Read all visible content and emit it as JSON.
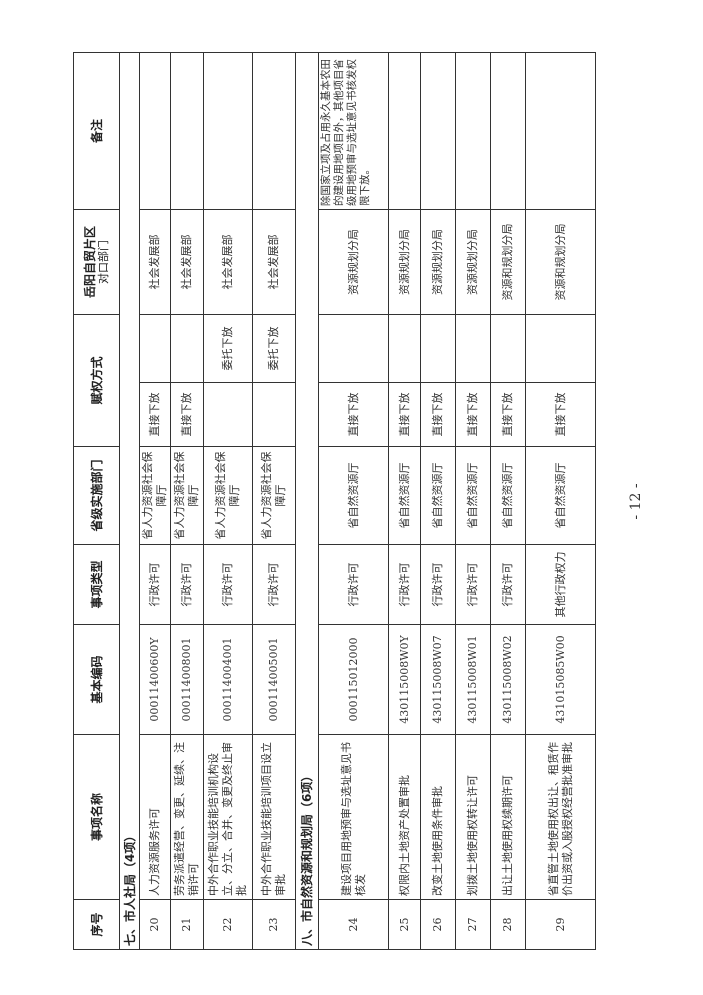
{
  "table": {
    "headers": {
      "seq": "序号",
      "name": "事项名称",
      "code": "基本编码",
      "type": "事项类型",
      "provincial_dept": "省级实施部门",
      "grant_method": "赋权方式",
      "counterpart_line1": "岳阳自贸片区",
      "counterpart_line2": "对口部门",
      "remark": "备注"
    },
    "sections": [
      {
        "title": "七、市人社局（4项）",
        "rows": [
          {
            "seq": "20",
            "name": "人力资源服务许可",
            "code": "00011400600Y",
            "type": "行政许可",
            "dept": "省人力资源社会保障厅",
            "direct": "直接下放",
            "entrust": "",
            "counterpart": "社会发展部",
            "remark": ""
          },
          {
            "seq": "21",
            "name": "劳务派遣经营、变更、延续、注销许可",
            "code": "000114008001",
            "type": "行政许可",
            "dept": "省人力资源社会保障厅",
            "direct": "直接下放",
            "entrust": "",
            "counterpart": "社会发展部",
            "remark": ""
          },
          {
            "seq": "22",
            "name": "中外合作职业技能培训机构设立、分立、合并、变更及终止审批",
            "code": "000114004001",
            "type": "行政许可",
            "dept": "省人力资源社会保障厅",
            "direct": "",
            "entrust": "委托下放",
            "counterpart": "社会发展部",
            "remark": ""
          },
          {
            "seq": "23",
            "name": "中外合作职业技能培训项目设立审批",
            "code": "000114005001",
            "type": "行政许可",
            "dept": "省人力资源社会保障厅",
            "direct": "",
            "entrust": "委托下放",
            "counterpart": "社会发展部",
            "remark": ""
          }
        ]
      },
      {
        "title": "八、市自然资源和规划局（6项）",
        "rows": [
          {
            "seq": "24",
            "name": "建设项目用地预审与选址意见书核发",
            "code": "000115012000",
            "type": "行政许可",
            "dept": "省自然资源厅",
            "direct": "直接下放",
            "entrust": "",
            "counterpart": "资源规划分局",
            "remark": "除国家立项及占用永久基本农田的建设用地项目外，其他项目省级用地预审与选址意见书核发权限下放。"
          },
          {
            "seq": "25",
            "name": "权限内土地资产处置审批",
            "code": "430115008W0Y",
            "type": "行政许可",
            "dept": "省自然资源厅",
            "direct": "直接下放",
            "entrust": "",
            "counterpart": "资源规划分局",
            "remark": ""
          },
          {
            "seq": "26",
            "name": "改变土地使用条件审批",
            "code": "430115008W07",
            "type": "行政许可",
            "dept": "省自然资源厅",
            "direct": "直接下放",
            "entrust": "",
            "counterpart": "资源规划分局",
            "remark": ""
          },
          {
            "seq": "27",
            "name": "划拨土地使用权转让许可",
            "code": "430115008W01",
            "type": "行政许可",
            "dept": "省自然资源厅",
            "direct": "直接下放",
            "entrust": "",
            "counterpart": "资源规划分局",
            "remark": ""
          },
          {
            "seq": "28",
            "name": "出让土地使用权续期许可",
            "code": "430115008W02",
            "type": "行政许可",
            "dept": "省自然资源厅",
            "direct": "直接下放",
            "entrust": "",
            "counterpart": "资源和规划分局",
            "remark": ""
          },
          {
            "seq": "29",
            "name": "省直管土地使用权出让、租赁作价出资或入股授权经营批准审批",
            "code": "431015085W00",
            "type": "其他行政权力",
            "dept": "省自然资源厅",
            "direct": "直接下放",
            "entrust": "",
            "counterpart": "资源和规划分局",
            "remark": ""
          }
        ]
      }
    ]
  },
  "page_number": "- 12 -"
}
